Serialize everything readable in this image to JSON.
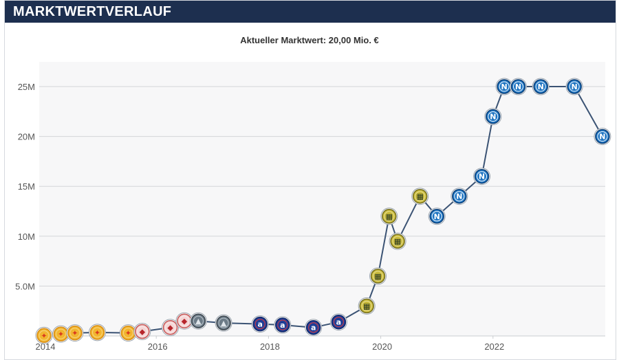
{
  "header": {
    "title": "MARKTWERTVERLAUF"
  },
  "chart_data": {
    "type": "line",
    "title": "Aktueller Marktwert: 20,00 Mio. €",
    "xlabel": "",
    "ylabel": "",
    "xlim": [
      2014,
      2024
    ],
    "ylim": [
      0,
      25
    ],
    "y_ticks": [
      {
        "value": 5,
        "label": "5.0M"
      },
      {
        "value": 10,
        "label": "10M"
      },
      {
        "value": 15,
        "label": "15M"
      },
      {
        "value": 20,
        "label": "20M"
      },
      {
        "value": 25,
        "label": "25M"
      }
    ],
    "x_ticks": [
      {
        "value": 2014,
        "label": "2014"
      },
      {
        "value": 2016,
        "label": "2016"
      },
      {
        "value": 2018,
        "label": "2018"
      },
      {
        "value": 2020,
        "label": "2020"
      },
      {
        "value": 2022,
        "label": "2022"
      }
    ],
    "grid": true,
    "line_color": "#3b5374",
    "series": [
      {
        "points": [
          {
            "x": 2014.0,
            "y": 0.05,
            "club": "orange"
          },
          {
            "x": 2014.3,
            "y": 0.2,
            "club": "orange"
          },
          {
            "x": 2014.55,
            "y": 0.3,
            "club": "orange"
          },
          {
            "x": 2014.95,
            "y": 0.35,
            "club": "orange"
          },
          {
            "x": 2015.5,
            "y": 0.3,
            "club": "orange"
          },
          {
            "x": 2015.75,
            "y": 0.45,
            "club": "red"
          },
          {
            "x": 2016.25,
            "y": 0.85,
            "club": "red"
          },
          {
            "x": 2016.5,
            "y": 1.5,
            "club": "red"
          },
          {
            "x": 2016.75,
            "y": 1.5,
            "club": "gray"
          },
          {
            "x": 2017.2,
            "y": 1.3,
            "club": "gray"
          },
          {
            "x": 2017.85,
            "y": 1.2,
            "club": "dinamo"
          },
          {
            "x": 2018.25,
            "y": 1.1,
            "club": "dinamo"
          },
          {
            "x": 2018.8,
            "y": 0.85,
            "club": "dinamo"
          },
          {
            "x": 2019.25,
            "y": 1.4,
            "club": "dinamo"
          },
          {
            "x": 2019.75,
            "y": 3.0,
            "club": "hellas"
          },
          {
            "x": 2019.95,
            "y": 6.0,
            "club": "hellas"
          },
          {
            "x": 2020.15,
            "y": 12.0,
            "club": "hellas"
          },
          {
            "x": 2020.3,
            "y": 9.5,
            "club": "hellas"
          },
          {
            "x": 2020.7,
            "y": 14.0,
            "club": "hellas"
          },
          {
            "x": 2021.0,
            "y": 12.0,
            "club": "napoli"
          },
          {
            "x": 2021.4,
            "y": 14.0,
            "club": "napoli"
          },
          {
            "x": 2021.8,
            "y": 16.0,
            "club": "napoli"
          },
          {
            "x": 2022.0,
            "y": 22.0,
            "club": "napoli"
          },
          {
            "x": 2022.2,
            "y": 25.0,
            "club": "napoli"
          },
          {
            "x": 2022.45,
            "y": 25.0,
            "club": "napoli"
          },
          {
            "x": 2022.85,
            "y": 25.0,
            "club": "napoli"
          },
          {
            "x": 2023.45,
            "y": 25.0,
            "club": "napoli"
          },
          {
            "x": 2023.95,
            "y": 20.0,
            "club": "napoli"
          }
        ]
      }
    ],
    "badge_styles": {
      "orange": {
        "fill": "#f2b630",
        "stroke": "#d68a12",
        "ring": "#f7d682",
        "mark": "#d9391e",
        "letter": "✦"
      },
      "red": {
        "fill": "#f4d5d5",
        "stroke": "#c45252",
        "ring": "#fbe9e9",
        "mark": "#b7262c",
        "letter": "◆"
      },
      "gray": {
        "fill": "#6c7b87",
        "stroke": "#39434c",
        "ring": "#b9c2c9",
        "mark": "#dfe5ea",
        "letter": "▲"
      },
      "dinamo": {
        "fill": "#1f3f97",
        "stroke": "#0f2567",
        "ring": "#e23b3b",
        "mark": "#ffffff",
        "letter": "a"
      },
      "hellas": {
        "fill": "#c8b93a",
        "stroke": "#6f6a1f",
        "ring": "#e9e095",
        "mark": "#2c3b24",
        "letter": "▦"
      },
      "napoli": {
        "fill": "#1d74c2",
        "stroke": "#0c3e75",
        "ring": "#ffffff",
        "mark": "#ffffff",
        "letter": "N"
      }
    }
  }
}
